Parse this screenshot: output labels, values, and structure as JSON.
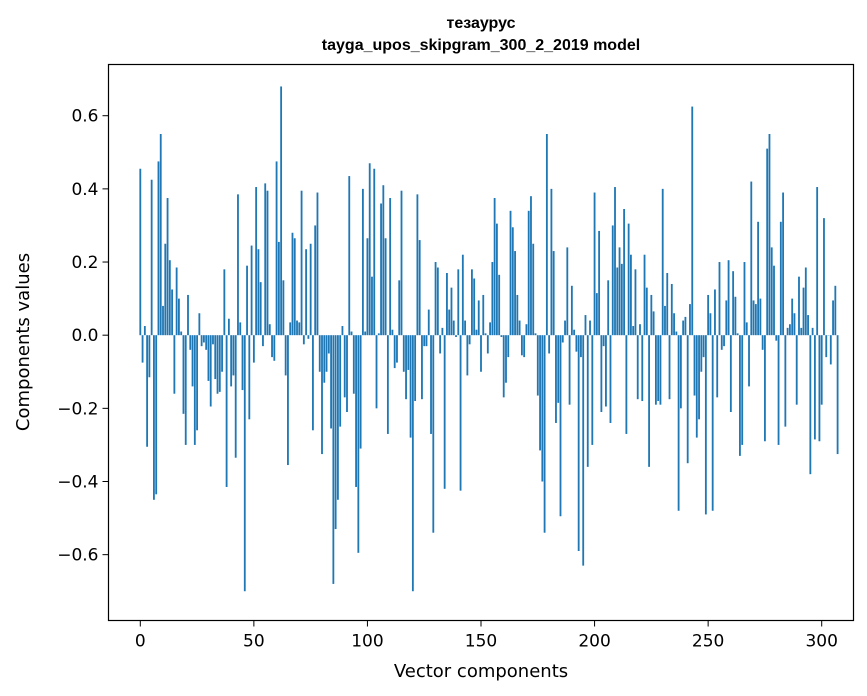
{
  "chart_data": {
    "type": "bar",
    "title": "тезаурус",
    "subtitle": "tayga_upos_skipgram_300_2_2019 model",
    "xlabel": "Vector components",
    "ylabel": "Components values",
    "xlim": [
      -14,
      314
    ],
    "ylim": [
      -0.78,
      0.74
    ],
    "xticks": [
      0,
      50,
      100,
      150,
      200,
      250,
      300
    ],
    "yticks": [
      -0.6,
      -0.4,
      -0.2,
      0.0,
      0.2,
      0.4,
      0.6
    ],
    "ytick_labels": [
      "−0.6",
      "−0.4",
      "−0.2",
      "0.0",
      "0.2",
      "0.4",
      "0.6"
    ],
    "xtick_labels": [
      "0",
      "50",
      "100",
      "150",
      "200",
      "250",
      "300"
    ],
    "grid": false,
    "bar_color": "#1f77b4",
    "x_start": 0,
    "values": [
      0.455,
      -0.075,
      0.025,
      -0.305,
      -0.115,
      0.425,
      -0.45,
      -0.435,
      0.475,
      0.55,
      0.08,
      0.25,
      0.375,
      0.205,
      0.125,
      -0.16,
      0.185,
      0.1,
      0.01,
      -0.215,
      -0.3,
      0.11,
      -0.04,
      -0.14,
      -0.3,
      -0.26,
      0.06,
      -0.03,
      -0.02,
      -0.04,
      -0.125,
      -0.195,
      -0.025,
      -0.12,
      -0.16,
      -0.155,
      -0.1,
      0.18,
      -0.415,
      0.045,
      -0.14,
      -0.11,
      -0.335,
      0.385,
      0.035,
      -0.15,
      -0.7,
      0.19,
      -0.23,
      0.245,
      -0.075,
      0.405,
      0.235,
      0.145,
      -0.03,
      0.415,
      0.395,
      0.03,
      -0.06,
      -0.07,
      0.475,
      0.255,
      0.68,
      0.15,
      -0.11,
      -0.355,
      0.035,
      0.28,
      0.265,
      0.04,
      0.035,
      0.395,
      -0.025,
      0.235,
      -0.01,
      0.25,
      -0.26,
      0.3,
      0.39,
      -0.1,
      -0.325,
      -0.13,
      -0.1,
      -0.05,
      -0.255,
      -0.68,
      -0.53,
      -0.45,
      -0.25,
      0.025,
      -0.17,
      -0.21,
      0.435,
      0.01,
      -0.16,
      -0.415,
      -0.595,
      -0.31,
      0.4,
      0.01,
      0.265,
      0.47,
      0.16,
      0.455,
      -0.2,
      0.005,
      0.36,
      0.41,
      0.265,
      -0.27,
      0.375,
      0.015,
      -0.09,
      -0.075,
      0.15,
      0.395,
      -0.1,
      -0.175,
      -0.095,
      -0.28,
      -0.7,
      -0.18,
      0.385,
      0.26,
      -0.175,
      -0.03,
      -0.03,
      0.07,
      -0.27,
      -0.54,
      0.2,
      0.185,
      -0.05,
      0.02,
      -0.42,
      0.17,
      0.07,
      0.13,
      0.04,
      -0.005,
      0.18,
      -0.425,
      0.22,
      0.04,
      -0.11,
      -0.025,
      0.18,
      0.155,
      0.015,
      0.095,
      -0.1,
      0.11,
      0.005,
      -0.05,
      0.035,
      0.2,
      0.375,
      0.305,
      0.165,
      -0.005,
      -0.17,
      -0.13,
      -0.06,
      0.34,
      0.295,
      0.23,
      0.11,
      0.04,
      -0.055,
      -0.06,
      0.03,
      0.34,
      0.38,
      0.25,
      0.005,
      -0.165,
      -0.315,
      -0.4,
      -0.54,
      0.55,
      -0.05,
      0.4,
      0.23,
      -0.24,
      -0.185,
      -0.495,
      -0.02,
      0.04,
      0.24,
      -0.19,
      0.135,
      0.015,
      -0.045,
      -0.59,
      -0.06,
      -0.63,
      0.055,
      -0.36,
      0.04,
      -0.3,
      0.39,
      0.115,
      0.285,
      -0.21,
      -0.03,
      -0.195,
      0.15,
      -0.24,
      0.3,
      0.405,
      0.185,
      0.24,
      0.195,
      0.345,
      -0.27,
      0.305,
      0.22,
      0.025,
      0.18,
      -0.175,
      0.03,
      -0.18,
      0.22,
      0.13,
      -0.36,
      0.11,
      0.065,
      -0.19,
      -0.18,
      -0.19,
      0.4,
      0.08,
      0.17,
      -0.175,
      0.14,
      0.06,
      0.01,
      -0.48,
      -0.2,
      0.04,
      0.05,
      -0.35,
      0.085,
      0.625,
      -0.165,
      -0.28,
      -0.23,
      -0.1,
      -0.06,
      -0.49,
      0.11,
      0.06,
      -0.48,
      0.125,
      -0.17,
      0.2,
      -0.04,
      -0.03,
      0.095,
      0.205,
      -0.21,
      0.175,
      0.105,
      0.005,
      -0.33,
      -0.3,
      0.2,
      0.035,
      -0.14,
      0.42,
      0.095,
      0.085,
      0.31,
      0.1,
      -0.04,
      -0.29,
      0.51,
      0.55,
      0.24,
      0.19,
      -0.015,
      -0.3,
      0.31,
      0.39,
      -0.25,
      0.02,
      0.03,
      0.1,
      0.06,
      -0.19,
      0.16,
      0.02,
      0.13,
      0.185,
      0.055,
      -0.38,
      0.02,
      -0.285,
      0.405,
      -0.29,
      -0.19,
      0.32,
      -0.06,
      0.0,
      -0.08,
      0.095,
      0.135,
      -0.325
    ]
  }
}
